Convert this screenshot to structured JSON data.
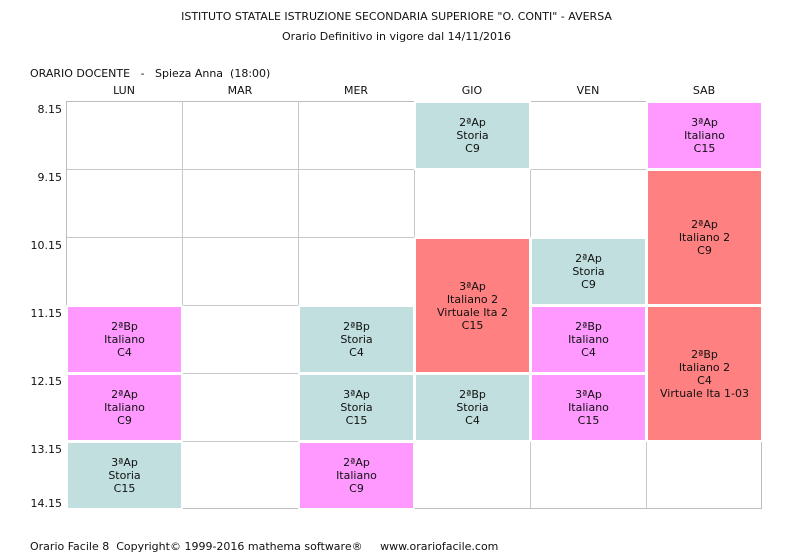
{
  "header": {
    "title": "ISTITUTO STATALE ISTRUZIONE SECONDARIA SUPERIORE \"O. CONTI\" - AVERSA",
    "subtitle": "Orario Definitivo in vigore dal 14/11/2016",
    "teacher": "ORARIO DOCENTE   -   Spieza Anna  (18:00)"
  },
  "days": [
    "LUN",
    "MAR",
    "MER",
    "GIO",
    "VEN",
    "SAB"
  ],
  "times": [
    "8.15",
    "9.15",
    "10.15",
    "11.15",
    "12.15",
    "13.15",
    "14.15"
  ],
  "colors": {
    "storia": "#c0dfde",
    "italiano": "#ff99ff",
    "italiano2": "#ff8080"
  },
  "lessons": [
    {
      "day": 3,
      "period": 0,
      "span": 1,
      "color": "storia",
      "lines": [
        "2ªAp",
        "Storia",
        "C9"
      ]
    },
    {
      "day": 5,
      "period": 0,
      "span": 1,
      "color": "italiano",
      "lines": [
        "3ªAp",
        "Italiano",
        "C15"
      ]
    },
    {
      "day": 5,
      "period": 1,
      "span": 2,
      "color": "italiano2",
      "lines": [
        "2ªAp",
        "Italiano 2",
        "C9"
      ]
    },
    {
      "day": 3,
      "period": 2,
      "span": 2,
      "color": "italiano2",
      "lines": [
        "3ªAp",
        "Italiano 2",
        "Virtuale Ita 2",
        "C15"
      ]
    },
    {
      "day": 4,
      "period": 2,
      "span": 1,
      "color": "storia",
      "lines": [
        "2ªAp",
        "Storia",
        "C9"
      ]
    },
    {
      "day": 0,
      "period": 3,
      "span": 1,
      "color": "italiano",
      "lines": [
        "2ªBp",
        "Italiano",
        "C4"
      ]
    },
    {
      "day": 2,
      "period": 3,
      "span": 1,
      "color": "storia",
      "lines": [
        "2ªBp",
        "Storia",
        "C4"
      ]
    },
    {
      "day": 4,
      "period": 3,
      "span": 1,
      "color": "italiano",
      "lines": [
        "2ªBp",
        "Italiano",
        "C4"
      ]
    },
    {
      "day": 5,
      "period": 3,
      "span": 2,
      "color": "italiano2",
      "lines": [
        "2ªBp",
        "Italiano 2",
        "C4",
        "Virtuale Ita 1-03"
      ]
    },
    {
      "day": 0,
      "period": 4,
      "span": 1,
      "color": "italiano",
      "lines": [
        "2ªAp",
        "Italiano",
        "C9"
      ]
    },
    {
      "day": 2,
      "period": 4,
      "span": 1,
      "color": "storia",
      "lines": [
        "3ªAp",
        "Storia",
        "C15"
      ]
    },
    {
      "day": 3,
      "period": 4,
      "span": 1,
      "color": "storia",
      "lines": [
        "2ªBp",
        "Storia",
        "C4"
      ]
    },
    {
      "day": 4,
      "period": 4,
      "span": 1,
      "color": "italiano",
      "lines": [
        "3ªAp",
        "Italiano",
        "C15"
      ]
    },
    {
      "day": 0,
      "period": 5,
      "span": 1,
      "color": "storia",
      "lines": [
        "3ªAp",
        "Storia",
        "C15"
      ]
    },
    {
      "day": 2,
      "period": 5,
      "span": 1,
      "color": "italiano",
      "lines": [
        "2ªAp",
        "Italiano",
        "C9"
      ]
    }
  ],
  "footer": "Orario Facile 8  Copyright© 1999-2016 mathema software®     www.orariofacile.com"
}
